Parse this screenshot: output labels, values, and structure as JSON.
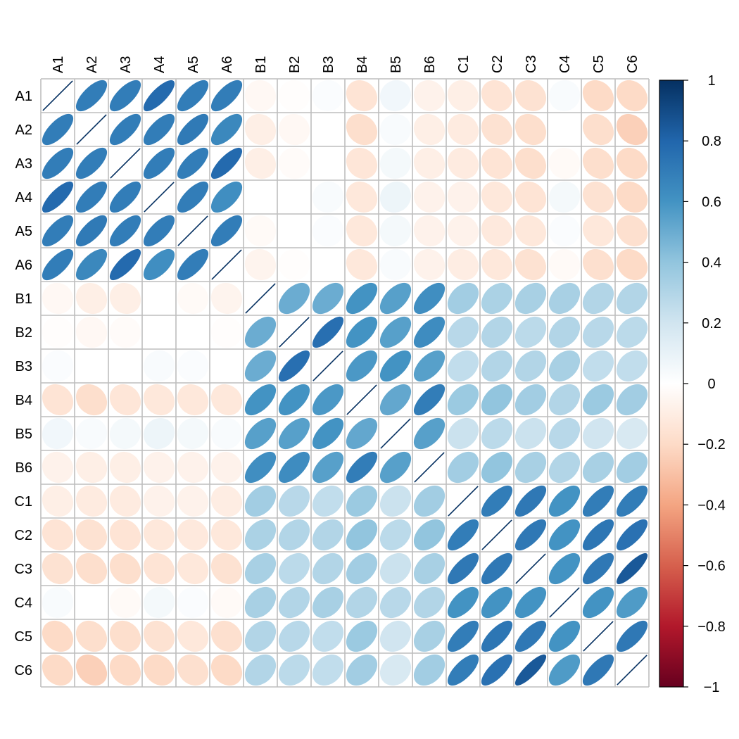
{
  "chart_data": {
    "type": "heatmap",
    "method": "ellipse",
    "variables": [
      "A1",
      "A2",
      "A3",
      "A4",
      "A5",
      "A6",
      "B1",
      "B2",
      "B3",
      "B4",
      "B5",
      "B6",
      "C1",
      "C2",
      "C3",
      "C4",
      "C5",
      "C6"
    ],
    "matrix": [
      [
        1,
        0.7,
        0.7,
        0.78,
        0.7,
        0.7,
        -0.04,
        -0.01,
        0.02,
        -0.15,
        0.06,
        -0.07,
        -0.09,
        -0.15,
        -0.16,
        0.03,
        -0.2,
        -0.2
      ],
      [
        0.7,
        1,
        0.7,
        0.7,
        0.71,
        0.65,
        -0.09,
        -0.04,
        0.0,
        -0.18,
        0.03,
        -0.09,
        -0.11,
        -0.16,
        -0.18,
        0.0,
        -0.18,
        -0.24
      ],
      [
        0.7,
        0.7,
        1,
        0.7,
        0.7,
        0.78,
        -0.09,
        -0.02,
        0.0,
        -0.14,
        0.05,
        -0.09,
        -0.11,
        -0.15,
        -0.18,
        -0.03,
        -0.18,
        -0.2
      ],
      [
        0.78,
        0.7,
        0.7,
        1,
        0.7,
        0.62,
        0.0,
        0.0,
        0.03,
        -0.13,
        0.08,
        -0.07,
        -0.07,
        -0.13,
        -0.15,
        0.05,
        -0.16,
        -0.2
      ],
      [
        0.7,
        0.71,
        0.7,
        0.7,
        1,
        0.7,
        -0.03,
        0.0,
        0.02,
        -0.13,
        0.05,
        -0.07,
        -0.07,
        -0.12,
        -0.13,
        0.02,
        -0.13,
        -0.17
      ],
      [
        0.7,
        0.65,
        0.78,
        0.62,
        0.7,
        1,
        -0.06,
        -0.01,
        0.0,
        -0.13,
        0.03,
        -0.07,
        -0.1,
        -0.13,
        -0.16,
        -0.03,
        -0.17,
        -0.2
      ],
      [
        -0.04,
        -0.09,
        -0.09,
        0.0,
        -0.03,
        -0.06,
        1,
        0.5,
        0.5,
        0.6,
        0.55,
        0.62,
        0.35,
        0.32,
        0.33,
        0.33,
        0.3,
        0.3
      ],
      [
        -0.01,
        -0.04,
        -0.02,
        0.0,
        0.0,
        -0.01,
        0.5,
        1,
        0.76,
        0.6,
        0.55,
        0.63,
        0.28,
        0.3,
        0.27,
        0.3,
        0.28,
        0.27
      ],
      [
        0.02,
        0.0,
        0.0,
        0.03,
        0.02,
        0.0,
        0.5,
        0.76,
        1,
        0.58,
        0.6,
        0.55,
        0.25,
        0.3,
        0.3,
        0.33,
        0.25,
        0.25
      ],
      [
        -0.15,
        -0.18,
        -0.14,
        -0.13,
        -0.13,
        -0.13,
        0.6,
        0.6,
        0.58,
        1,
        0.52,
        0.7,
        0.37,
        0.4,
        0.35,
        0.3,
        0.37,
        0.35
      ],
      [
        0.06,
        0.03,
        0.05,
        0.08,
        0.05,
        0.03,
        0.55,
        0.55,
        0.6,
        0.52,
        1,
        0.55,
        0.22,
        0.27,
        0.22,
        0.28,
        0.2,
        0.17
      ],
      [
        -0.07,
        -0.09,
        -0.09,
        -0.07,
        -0.07,
        -0.07,
        0.62,
        0.63,
        0.55,
        0.7,
        0.55,
        1,
        0.35,
        0.4,
        0.33,
        0.3,
        0.33,
        0.35
      ],
      [
        -0.09,
        -0.11,
        -0.11,
        -0.07,
        -0.07,
        -0.1,
        0.35,
        0.28,
        0.25,
        0.37,
        0.22,
        0.35,
        1,
        0.7,
        0.72,
        0.6,
        0.7,
        0.7
      ],
      [
        -0.15,
        -0.16,
        -0.15,
        -0.13,
        -0.12,
        -0.13,
        0.32,
        0.3,
        0.3,
        0.4,
        0.27,
        0.4,
        0.7,
        1,
        0.72,
        0.6,
        0.73,
        0.75
      ],
      [
        -0.16,
        -0.18,
        -0.18,
        -0.15,
        -0.13,
        -0.16,
        0.33,
        0.27,
        0.3,
        0.35,
        0.22,
        0.33,
        0.72,
        0.72,
        1,
        0.6,
        0.72,
        0.85
      ],
      [
        0.03,
        0.0,
        -0.03,
        0.05,
        0.02,
        -0.03,
        0.33,
        0.3,
        0.33,
        0.3,
        0.28,
        0.3,
        0.6,
        0.6,
        0.6,
        1,
        0.6,
        0.57
      ],
      [
        -0.2,
        -0.18,
        -0.18,
        -0.16,
        -0.13,
        -0.17,
        0.3,
        0.28,
        0.25,
        0.37,
        0.2,
        0.33,
        0.7,
        0.73,
        0.72,
        0.6,
        1,
        0.72
      ],
      [
        -0.2,
        -0.24,
        -0.2,
        -0.2,
        -0.17,
        -0.2,
        0.3,
        0.27,
        0.25,
        0.35,
        0.17,
        0.35,
        0.7,
        0.75,
        0.85,
        0.57,
        0.72,
        1
      ]
    ],
    "colorbar": {
      "min": -1,
      "max": 1,
      "ticks": [
        1,
        0.8,
        0.6,
        0.4,
        0.2,
        0,
        -0.2,
        -0.4,
        -0.6,
        -0.8,
        -1
      ],
      "tick_labels": [
        "1",
        "0.8",
        "0.6",
        "0.4",
        "0.2",
        "0",
        "−0.2",
        "−0.4",
        "−0.6",
        "−0.8",
        "−1"
      ]
    },
    "palette": [
      "#67001F",
      "#B2182B",
      "#D6604D",
      "#F4A582",
      "#FDDBC7",
      "#FFFFFF",
      "#D1E5F0",
      "#92C5DE",
      "#4393C3",
      "#2166AC",
      "#053061"
    ],
    "grid": true,
    "grid_color": "#BEBEBE",
    "diagonal_line_color": "#053061",
    "legend_position": "right"
  }
}
